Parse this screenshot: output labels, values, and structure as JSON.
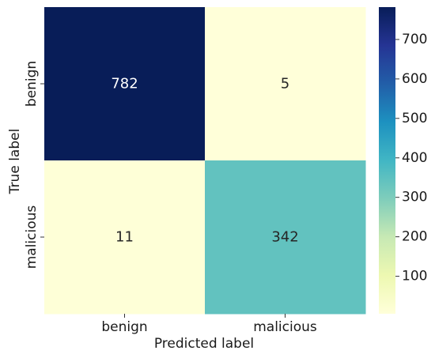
{
  "chart_data": {
    "type": "heatmap",
    "title": "",
    "xlabel": "Predicted label",
    "ylabel": "True label",
    "x_categories": [
      "benign",
      "malicious"
    ],
    "y_categories": [
      "benign",
      "malicious"
    ],
    "values": [
      [
        782,
        5
      ],
      [
        11,
        342
      ]
    ],
    "value_range": [
      5,
      782
    ],
    "colormap": "YlGnBu",
    "colormap_stops": [
      "#ffffd9",
      "#edf8b1",
      "#c7e9b4",
      "#7fcdbb",
      "#41b6c4",
      "#1d91c0",
      "#225ea8",
      "#253494",
      "#081d58"
    ],
    "colorbar_ticks": [
      100,
      200,
      300,
      400,
      500,
      600,
      700
    ],
    "annotation_colors": {
      "on_dark": "#ffffff",
      "on_light": "#262626"
    }
  }
}
